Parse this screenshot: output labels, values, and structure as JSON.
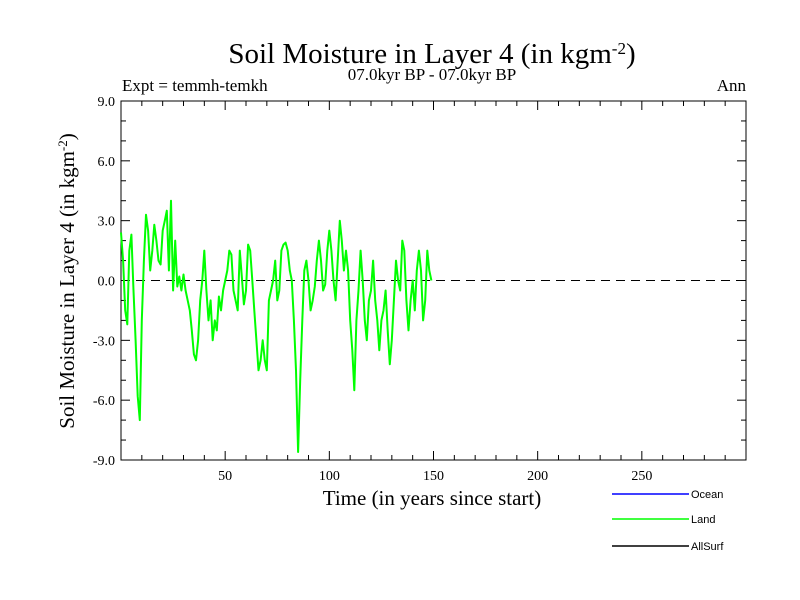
{
  "chart_data": {
    "type": "line",
    "title": "Soil Moisture in Layer 4 (in kgm",
    "title_superscript": "-2",
    "title_close": ")",
    "subtitle": "07.0kyr BP - 07.0kyr BP",
    "expt_label": "Expt = temmh-temkh",
    "period_label": "Ann",
    "xlabel": "Time (in years since start)",
    "ylabel": "Soil Moisture in Layer 4 (in kgm",
    "ylabel_superscript": "-2",
    "ylabel_close": ")",
    "xlim": [
      0,
      300
    ],
    "ylim": [
      -9,
      9
    ],
    "x_ticks": [
      50,
      100,
      150,
      200,
      250
    ],
    "x_tick_labels": [
      "50",
      "100",
      "150",
      "200",
      "250"
    ],
    "y_ticks": [
      -9,
      -6,
      -3,
      0,
      3,
      6,
      9
    ],
    "y_tick_labels": [
      "-9.0",
      "-6.0",
      "-3.0",
      "0.0",
      "3.0",
      "6.0",
      "9.0"
    ],
    "zero_line": 0,
    "legend_position": "bottom-right",
    "series": [
      {
        "name": "Ocean",
        "color": "#0000ff",
        "values": []
      },
      {
        "name": "Land",
        "color": "#00ff00",
        "x_start": 0,
        "x_step": 1,
        "values": [
          2.4,
          1.0,
          -1.5,
          -2.2,
          1.5,
          2.3,
          -0.5,
          -3.0,
          -5.8,
          -7.0,
          -2.0,
          1.0,
          3.3,
          2.5,
          0.5,
          1.5,
          2.8,
          2.0,
          1.0,
          0.8,
          2.5,
          3.0,
          3.5,
          0.5,
          4.0,
          -0.5,
          2.0,
          -0.3,
          0.2,
          -0.5,
          0.3,
          -0.5,
          -1.0,
          -1.5,
          -2.5,
          -3.7,
          -4.0,
          -3.0,
          -1.0,
          0.0,
          1.5,
          -0.5,
          -2.0,
          -1.0,
          -3.0,
          -2.0,
          -2.5,
          -0.8,
          -1.5,
          -0.5,
          0.0,
          0.5,
          1.5,
          1.3,
          -0.5,
          -1.0,
          -1.5,
          1.5,
          0.2,
          -1.2,
          -0.5,
          1.8,
          1.5,
          0.0,
          -1.5,
          -3.0,
          -4.5,
          -4.0,
          -3.0,
          -4.0,
          -4.5,
          -1.0,
          -0.5,
          0.0,
          1.0,
          -1.0,
          -0.5,
          1.5,
          1.8,
          1.9,
          1.5,
          0.5,
          0.0,
          -2.0,
          -4.5,
          -8.6,
          -5.0,
          -2.0,
          0.5,
          1.0,
          0.0,
          -1.5,
          -1.0,
          -0.3,
          1.0,
          2.0,
          1.0,
          -0.5,
          -0.2,
          1.5,
          2.5,
          1.5,
          0.0,
          -1.0,
          1.0,
          3.0,
          2.0,
          0.5,
          1.5,
          0.5,
          -2.0,
          -3.5,
          -5.5,
          -2.0,
          -0.5,
          1.5,
          0.0,
          -2.0,
          -3.0,
          -1.0,
          -0.5,
          1.0,
          -1.0,
          -2.0,
          -3.5,
          -2.0,
          -1.5,
          -0.5,
          -2.5,
          -4.2,
          -3.0,
          -1.0,
          1.0,
          0.0,
          -0.5,
          2.0,
          1.5,
          -1.0,
          -2.5,
          -1.0,
          0.0,
          -1.5,
          0.5,
          1.5,
          0.5,
          -2.0,
          -1.0,
          1.5,
          0.5,
          0.0
        ]
      },
      {
        "name": "AllSurf",
        "color": "#000000",
        "values": []
      }
    ]
  },
  "colors": {
    "land": "#00ff00",
    "ocean": "#0000ff",
    "allsurf": "#000000",
    "axis": "#000000",
    "zero_line": "#000000"
  }
}
